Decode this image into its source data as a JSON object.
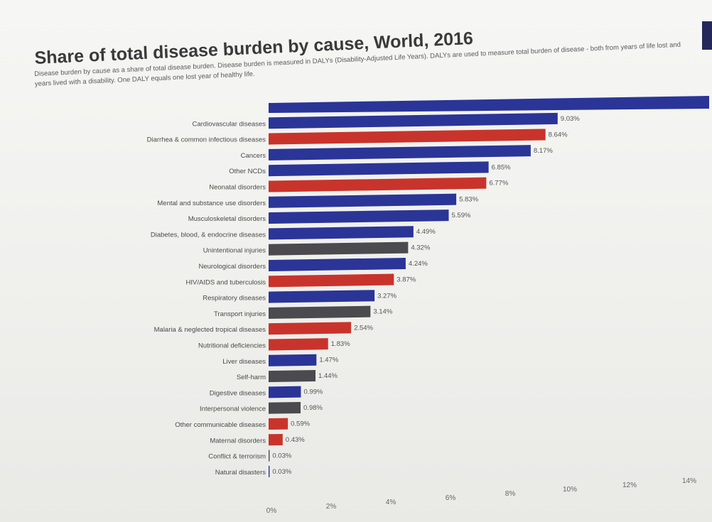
{
  "chart_data": {
    "type": "bar",
    "title": "Share of total disease burden by cause, World, 2016",
    "subtitle": "Disease burden by cause as a share of total disease burden. Disease burden is measured in DALYs (Disability-Adjusted Life Years). DALYs are used to measure total burden of disease - both from years of life lost and years lived with a disability. One DALY equals one lost year of healthy life.",
    "xlabel": "",
    "ylabel": "",
    "xlim": [
      0,
      14
    ],
    "xticks": [
      "0%",
      "2%",
      "4%",
      "6%",
      "8%",
      "10%",
      "12%",
      "14%"
    ],
    "grid": false,
    "orientation": "horizontal",
    "colors": {
      "blue": "#2a3597",
      "red": "#c8342b",
      "grey": "#4a4a4f"
    },
    "categories": [
      "Cardiovascular diseases",
      "Diarrhea & common infectious diseases",
      "Cancers",
      "Other NCDs",
      "Neonatal disorders",
      "Mental and substance use disorders",
      "Musculoskeletal disorders",
      "Diabetes, blood, & endocrine diseases",
      "Unintentional injuries",
      "Neurological disorders",
      "HIV/AIDS and tuberculosis",
      "Respiratory diseases",
      "Transport injuries",
      "Malaria & neglected tropical diseases",
      "Nutritional deficiencies",
      "Liver diseases",
      "Self-harm",
      "Digestive diseases",
      "Interpersonal violence",
      "Other communicable diseases",
      "Maternal disorders",
      "Conflict & terrorism",
      "Natural disasters"
    ],
    "values": [
      9.03,
      8.64,
      8.17,
      6.85,
      6.77,
      5.83,
      5.59,
      4.49,
      4.32,
      4.24,
      3.87,
      3.27,
      3.14,
      2.54,
      1.83,
      1.47,
      1.44,
      0.99,
      0.98,
      0.59,
      0.43,
      0.03,
      0.03
    ],
    "value_labels": [
      "9.03%",
      "8.64%",
      "8.17%",
      "6.85%",
      "6.77%",
      "5.83%",
      "5.59%",
      "4.49%",
      "4.32%",
      "4.24%",
      "3.87%",
      "3.27%",
      "3.14%",
      "2.54%",
      "1.83%",
      "1.47%",
      "1.44%",
      "0.99%",
      "0.98%",
      "0.59%",
      "0.43%",
      "0.03%",
      "0.03%"
    ],
    "bar_colors": [
      "blue",
      "red",
      "blue",
      "blue",
      "red",
      "blue",
      "blue",
      "blue",
      "grey",
      "blue",
      "red",
      "blue",
      "grey",
      "red",
      "red",
      "blue",
      "grey",
      "blue",
      "grey",
      "red",
      "red",
      "grey",
      "blue"
    ],
    "top_bar": {
      "color": "blue",
      "extends_past_axis": true
    }
  }
}
